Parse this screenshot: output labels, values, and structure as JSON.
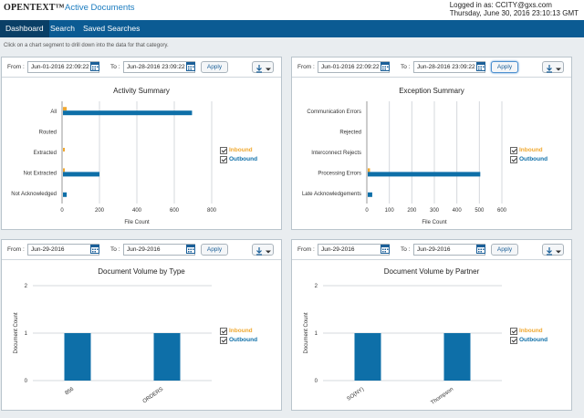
{
  "header": {
    "brand": "OPENTEXT™",
    "product": "Active Documents",
    "user_line": "Logged in as: CCITY@gxs.com",
    "date_line": "Thursday, June 30, 2016 23:10:13 GMT"
  },
  "nav": {
    "tabs": [
      "Dashboard",
      "Search",
      "Saved Searches"
    ],
    "active": "Dashboard"
  },
  "hint": "Click on a chart segment to drill down into the data for that category.",
  "colors": {
    "inbound": "#f0a830",
    "outbound": "#0e6fa8",
    "nav": "#0b5b93"
  },
  "panels": [
    {
      "from_label": "From :",
      "to_label": "To :",
      "from_date": "Jun-01-2016 22:09:22",
      "to_date": "Jun-28-2016 23:09:22",
      "apply_label": "Apply",
      "download_icon": "download-icon",
      "legend": {
        "inbound": "Inbound",
        "outbound": "Outbound"
      }
    },
    {
      "from_label": "From :",
      "to_label": "To :",
      "from_date": "Jun-01-2016 22:09:22",
      "to_date": "Jun-28-2016 23:09:22",
      "apply_label": "Apply",
      "download_icon": "download-icon",
      "legend": {
        "inbound": "Inbound",
        "outbound": "Outbound"
      }
    },
    {
      "from_label": "From :",
      "to_label": "To :",
      "from_date": "Jun-29-2016",
      "to_date": "Jun-29-2016",
      "apply_label": "Apply",
      "download_icon": "download-icon",
      "legend": {
        "inbound": "Inbound",
        "outbound": "Outbound"
      }
    },
    {
      "from_label": "From :",
      "to_label": "To :",
      "from_date": "Jun-29-2016",
      "to_date": "Jun-29-2016",
      "apply_label": "Apply",
      "download_icon": "download-icon",
      "legend": {
        "inbound": "Inbound",
        "outbound": "Outbound"
      }
    }
  ],
  "chart_data": [
    {
      "type": "bar",
      "orientation": "horizontal",
      "title": "Activity Summary",
      "xlabel": "File Count",
      "ylabel": "",
      "categories": [
        "All",
        "Routed",
        "Extracted",
        "Not Extracted",
        "Not Acknowledged"
      ],
      "series": [
        {
          "name": "Inbound",
          "values": [
            20,
            0,
            10,
            10,
            0
          ]
        },
        {
          "name": "Outbound",
          "values": [
            690,
            0,
            0,
            195,
            20
          ]
        }
      ],
      "xlim": [
        0,
        800
      ],
      "xticks": [
        0,
        200,
        400,
        600,
        800
      ],
      "grid": true,
      "legend": "right"
    },
    {
      "type": "bar",
      "orientation": "horizontal",
      "title": "Exception Summary",
      "xlabel": "File Count",
      "ylabel": "",
      "categories": [
        "Communication Errors",
        "Rejected",
        "Interconnect Rejects",
        "Processing Errors",
        "Late Acknowledgements"
      ],
      "series": [
        {
          "name": "Inbound",
          "values": [
            0,
            0,
            0,
            10,
            0
          ]
        },
        {
          "name": "Outbound",
          "values": [
            0,
            0,
            0,
            500,
            20
          ]
        }
      ],
      "xlim": [
        0,
        600
      ],
      "xticks": [
        0,
        100,
        200,
        300,
        400,
        500,
        600
      ],
      "grid": true,
      "legend": "right"
    },
    {
      "type": "bar",
      "orientation": "vertical",
      "title": "Document Volume by Type",
      "xlabel": "",
      "ylabel": "Document Count",
      "categories": [
        "856",
        "ORDERS"
      ],
      "series": [
        {
          "name": "Outbound",
          "values": [
            1,
            1
          ]
        }
      ],
      "ylim": [
        0,
        2
      ],
      "yticks": [
        0,
        1,
        2
      ],
      "grid": true,
      "legend": "right"
    },
    {
      "type": "bar",
      "orientation": "vertical",
      "title": "Document Volume by Partner",
      "xlabel": "",
      "ylabel": "Document Count",
      "categories": [
        "SO(NY)",
        "Thompson"
      ],
      "series": [
        {
          "name": "Outbound",
          "values": [
            1,
            1
          ]
        }
      ],
      "ylim": [
        0,
        2
      ],
      "yticks": [
        0,
        1,
        2
      ],
      "grid": true,
      "legend": "right"
    }
  ]
}
